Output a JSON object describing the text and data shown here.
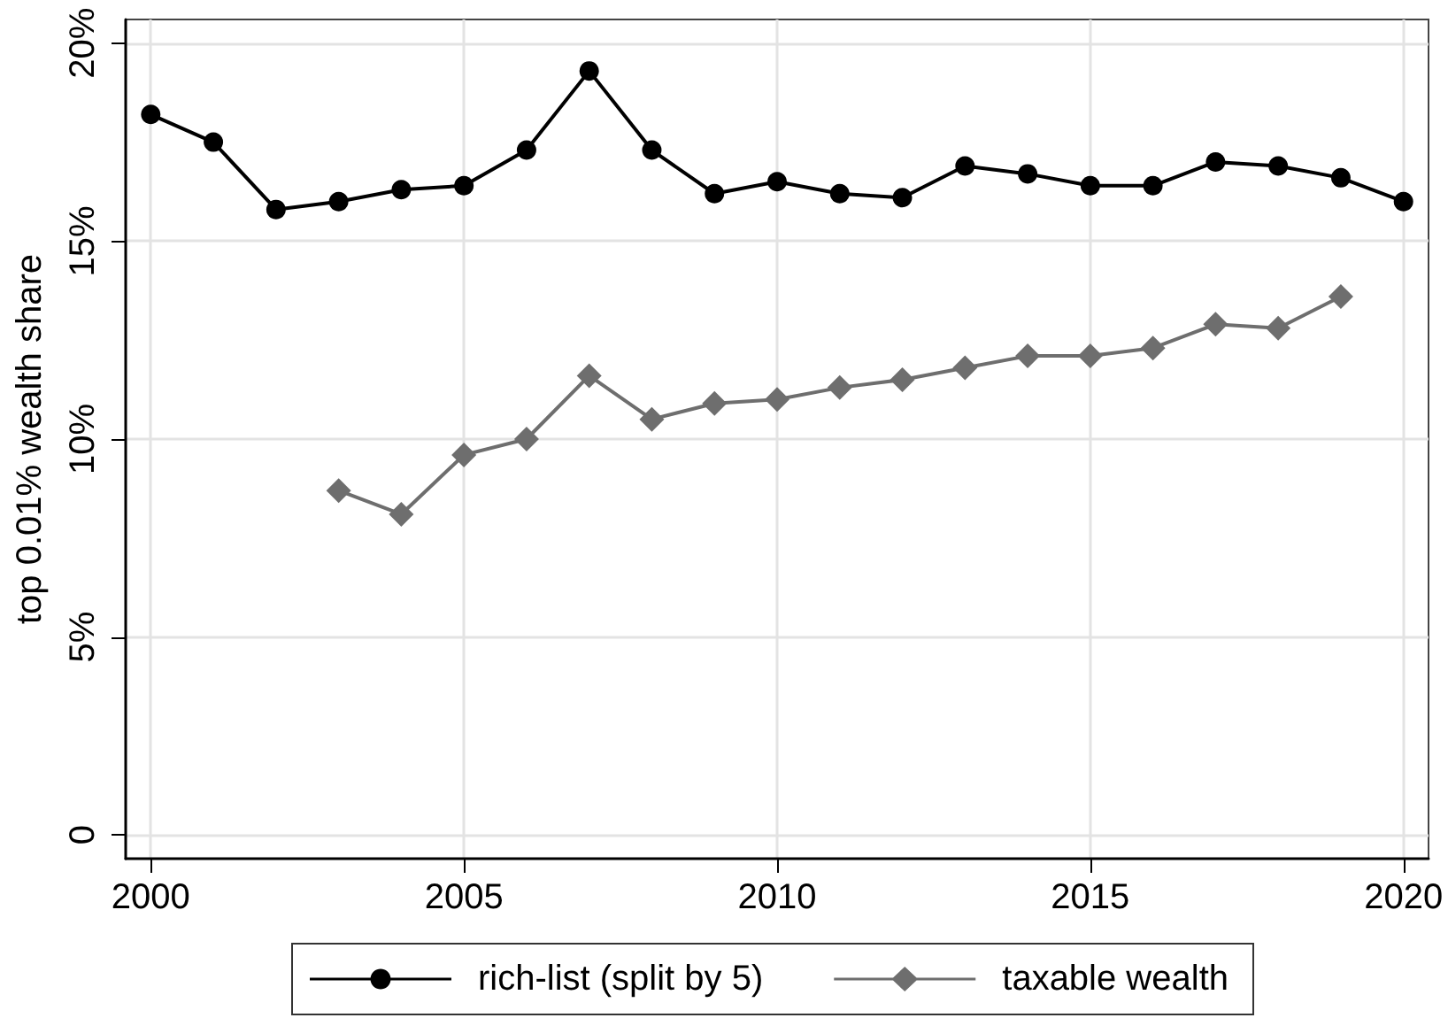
{
  "chart_data": {
    "type": "line",
    "ylabel": "top 0.01% wealth share",
    "x": [
      2000,
      2001,
      2002,
      2003,
      2004,
      2005,
      2006,
      2007,
      2008,
      2009,
      2010,
      2011,
      2012,
      2013,
      2014,
      2015,
      2016,
      2017,
      2018,
      2019,
      2020
    ],
    "series": [
      {
        "name": "rich-list (split by 5)",
        "color": "#000000",
        "marker": "circle",
        "values": [
          18.2,
          17.5,
          15.8,
          16.0,
          16.3,
          16.4,
          17.3,
          19.3,
          17.3,
          16.2,
          16.5,
          16.2,
          16.1,
          16.9,
          16.7,
          16.4,
          16.4,
          17.0,
          16.9,
          16.6,
          16.0
        ]
      },
      {
        "name": "taxable wealth",
        "color": "#6e6e6e",
        "marker": "diamond",
        "values": [
          null,
          null,
          null,
          8.7,
          8.1,
          9.6,
          10.0,
          11.6,
          10.5,
          10.9,
          11.0,
          11.3,
          11.5,
          11.8,
          12.1,
          12.1,
          12.3,
          12.9,
          12.8,
          13.6,
          null
        ]
      }
    ],
    "xlim": [
      1999.6,
      2020.4
    ],
    "xticks": [
      2000,
      2005,
      2010,
      2015,
      2020
    ],
    "ylim": [
      -0.6,
      20.6
    ],
    "yticks": [
      0,
      {
        "value": 5,
        "label": "5%"
      },
      {
        "value": 10,
        "label": "10%"
      },
      {
        "value": 15,
        "label": "15%"
      },
      {
        "value": 20,
        "label": "20%"
      }
    ],
    "grid": true,
    "legend": "bottom"
  }
}
